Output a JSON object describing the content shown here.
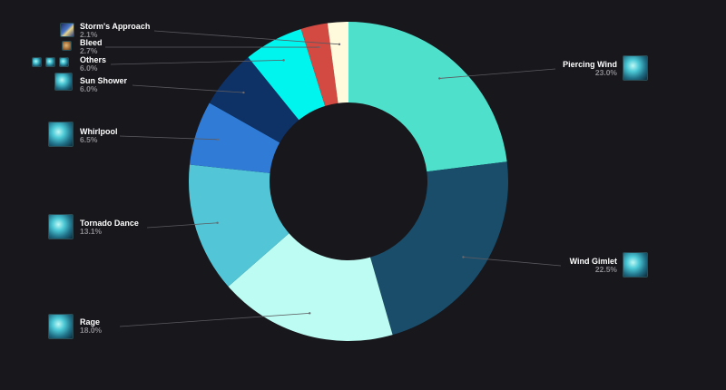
{
  "chart_data": {
    "type": "pie",
    "donut": true,
    "slices": [
      {
        "label": "Piercing Wind",
        "value": 23.0,
        "display": "23.0%",
        "color": "#4fe0cc",
        "icon": "piercing-wind-icon"
      },
      {
        "label": "Wind Gimlet",
        "value": 22.5,
        "display": "22.5%",
        "color": "#1a4d6a",
        "icon": "wind-gimlet-icon"
      },
      {
        "label": "Rage",
        "value": 18.0,
        "display": "18.0%",
        "color": "#bdfcf2",
        "icon": "rage-icon"
      },
      {
        "label": "Tornado Dance",
        "value": 13.1,
        "display": "13.1%",
        "color": "#52c6d6",
        "icon": "tornado-dance-icon"
      },
      {
        "label": "Whirlpool",
        "value": 6.5,
        "display": "6.5%",
        "color": "#2f7bd6",
        "icon": "whirlpool-icon"
      },
      {
        "label": "Sun Shower",
        "value": 6.0,
        "display": "6.0%",
        "color": "#0e3166",
        "icon": "sun-shower-icon"
      },
      {
        "label": "Others",
        "value": 6.0,
        "display": "6.0%",
        "color": "#00f5ef",
        "icon": "others-icon"
      },
      {
        "label": "Bleed",
        "value": 2.7,
        "display": "2.7%",
        "color": "#d24a42",
        "icon": "bleed-icon"
      },
      {
        "label": "Storm's Approach",
        "value": 2.1,
        "display": "2.1%",
        "color": "#fffadc",
        "icon": "storms-approach-icon"
      }
    ]
  }
}
